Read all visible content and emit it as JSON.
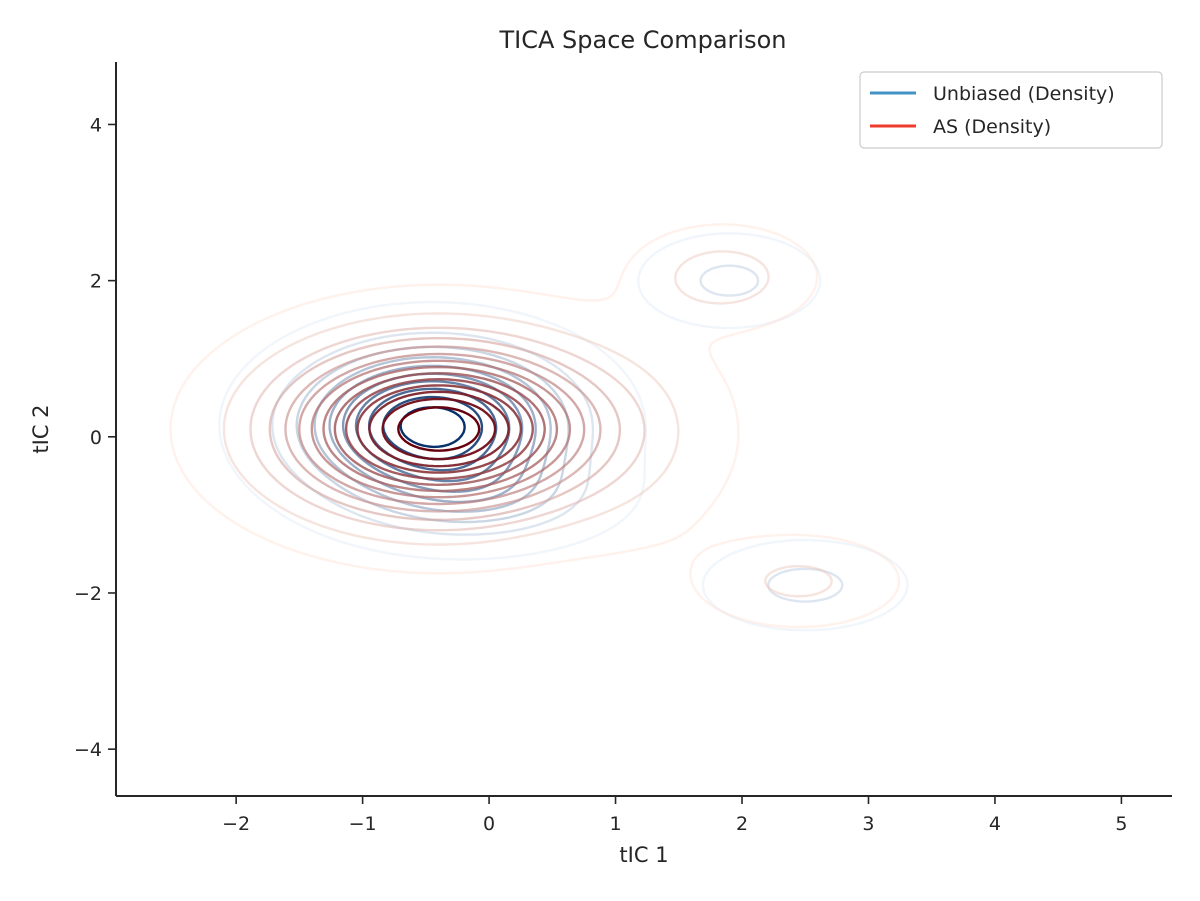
{
  "chart_data": {
    "type": "contour",
    "title": "TICA Space Comparison",
    "xlabel": "tIC 1",
    "ylabel": "tIC 2",
    "xlim": [
      -2.95,
      5.4
    ],
    "ylim": [
      -4.6,
      4.8
    ],
    "xticks": [
      -2,
      -1,
      0,
      1,
      2,
      3,
      4,
      5
    ],
    "yticks": [
      -4,
      -2,
      0,
      2,
      4
    ],
    "xtick_labels": [
      "−2",
      "−1",
      "0",
      "1",
      "2",
      "3",
      "4",
      "5"
    ],
    "ytick_labels": [
      "−4",
      "−2",
      "0",
      "2",
      "4"
    ],
    "grid": false,
    "legend_position": "top-right",
    "legend": [
      {
        "label": "Unbiased (Density)",
        "color": "#4292c6"
      },
      {
        "label": "AS (Density)",
        "color": "#ef3b2c"
      }
    ],
    "series": [
      {
        "name": "Unbiased (Density)",
        "colormap": "Blues",
        "color_light": "#deebf7",
        "color_dark": "#08306b",
        "levels": 10,
        "components": [
          {
            "center": [
              -0.45,
              0.15
            ],
            "sigma": [
              0.62,
              0.58
            ],
            "weight": 1.0
          },
          {
            "center": [
              -0.05,
              -0.75
            ],
            "sigma": [
              0.55,
              0.35
            ],
            "weight": 0.22
          },
          {
            "center": [
              1.9,
              2.0
            ],
            "sigma": [
              0.38,
              0.32
            ],
            "weight": 0.15
          },
          {
            "center": [
              2.5,
              -1.9
            ],
            "sigma": [
              0.42,
              0.3
            ],
            "weight": 0.16
          }
        ]
      },
      {
        "name": "AS (Density)",
        "colormap": "Reds",
        "color_light": "#fee0d2",
        "color_dark": "#67000d",
        "levels": 14,
        "components": [
          {
            "center": [
              -0.4,
              0.1
            ],
            "sigma": [
              0.78,
              0.68
            ],
            "weight": 1.0
          },
          {
            "center": [
              1.85,
              2.05
            ],
            "sigma": [
              0.4,
              0.36
            ],
            "weight": 0.14
          },
          {
            "center": [
              2.45,
              -1.85
            ],
            "sigma": [
              0.46,
              0.34
            ],
            "weight": 0.11
          },
          {
            "center": [
              1.2,
              0.0
            ],
            "sigma": [
              0.5,
              0.9
            ],
            "weight": 0.05
          }
        ]
      }
    ]
  }
}
